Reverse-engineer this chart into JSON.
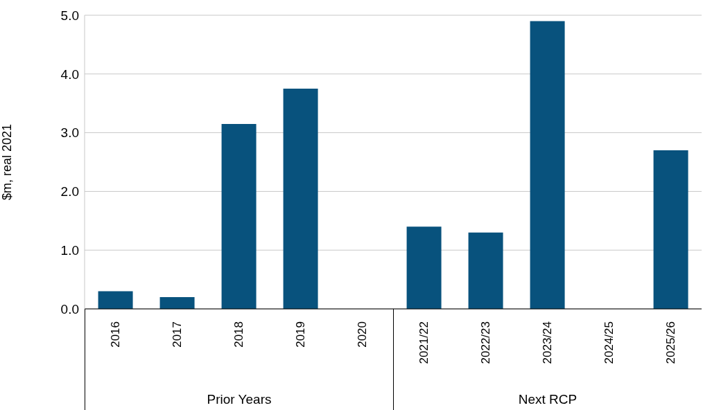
{
  "chart_data": {
    "type": "bar",
    "ylabel": "$m, real 2021",
    "categories": [
      "2016",
      "2017",
      "2018",
      "2019",
      "2020",
      "2021/22",
      "2022/23",
      "2023/24",
      "2024/25",
      "2025/26"
    ],
    "values": [
      0.3,
      0.2,
      3.15,
      3.75,
      0,
      1.4,
      1.3,
      4.9,
      0,
      2.7
    ],
    "color": "#08527d",
    "ylim": [
      0,
      5
    ],
    "yticks": [
      {
        "value": 0,
        "label": "0.0"
      },
      {
        "value": 1,
        "label": "1.0"
      },
      {
        "value": 2,
        "label": "2.0"
      },
      {
        "value": 3,
        "label": "3.0"
      },
      {
        "value": 4,
        "label": "4.0"
      },
      {
        "value": 5,
        "label": "5.0"
      }
    ],
    "grid": "y",
    "annotations": [
      "Prior Years",
      "Next RCP"
    ]
  }
}
